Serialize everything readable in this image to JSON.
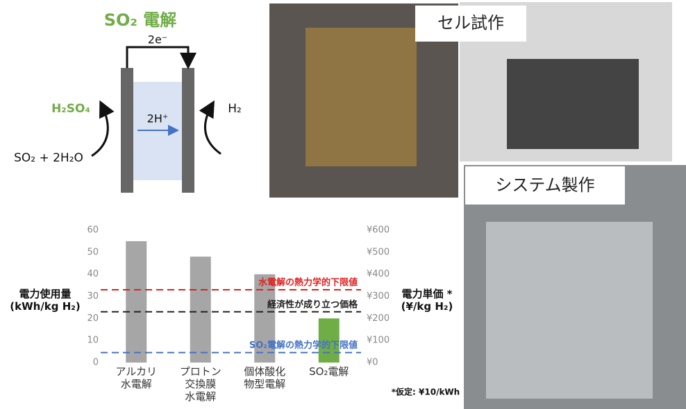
{
  "diagram": {
    "title": "SO₂ 電解",
    "electron": "2e⁻",
    "proton": "2H⁺",
    "anode_product": "H₂SO₄",
    "cathode_product": "H₂",
    "anode_input": "SO₂ + 2H₂O"
  },
  "photos": [
    {
      "label": "セル試作"
    },
    {
      "label": "システム製作"
    }
  ],
  "chart_data": {
    "type": "bar",
    "categories": [
      "アルカリ\n水電解",
      "プロトン\n交換膜\n水電解",
      "個体酸化\n物型電解",
      "SO₂電解"
    ],
    "values": [
      55,
      48,
      40,
      20
    ],
    "colors": [
      "#a6a6a6",
      "#a6a6a6",
      "#a6a6a6",
      "#70ad47"
    ],
    "ylim": [
      0,
      60
    ],
    "yticks": [
      0,
      10,
      20,
      30,
      40,
      50,
      60
    ],
    "y2lim": [
      0,
      600
    ],
    "y2ticks": [
      {
        "value": 0,
        "label": "¥0"
      },
      {
        "value": 100,
        "label": "¥100"
      },
      {
        "value": 200,
        "label": "¥200"
      },
      {
        "value": 300,
        "label": "¥300"
      },
      {
        "value": 400,
        "label": "¥400"
      },
      {
        "value": 500,
        "label": "¥500"
      },
      {
        "value": 600,
        "label": "¥600"
      }
    ],
    "ylabel": "電力使用量\n(kWh/kg H₂)",
    "y2label": "電力単価 *\n(¥/kg H₂)",
    "reference_lines": [
      {
        "label": "水電解の熱力学的下限値",
        "value": 33,
        "color": "#e0201e"
      },
      {
        "label": "経済性が成り立つ価格",
        "value": 23,
        "color": "#222222"
      },
      {
        "label": "SO₂電解の熱力学的下限値",
        "value": 4.5,
        "color": "#4472c4"
      }
    ],
    "note": "*仮定: ¥10/kWh"
  }
}
